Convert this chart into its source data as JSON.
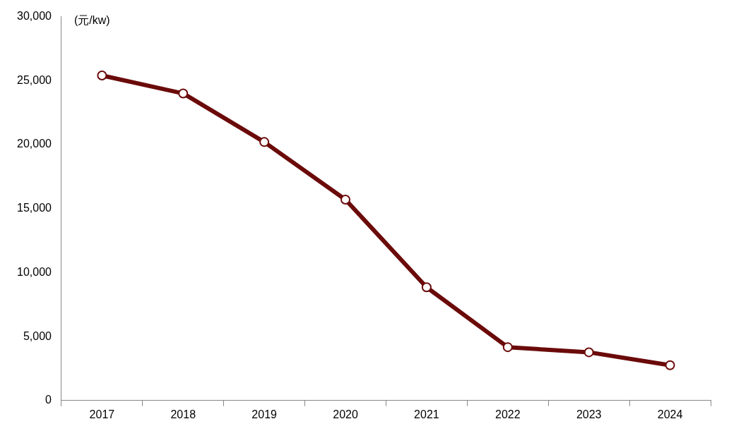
{
  "chart_data": {
    "type": "line",
    "ylabel": "(元/kw)",
    "categories": [
      "2017",
      "2018",
      "2019",
      "2020",
      "2021",
      "2022",
      "2023",
      "2024"
    ],
    "series": [
      {
        "color": "#6b0a0a",
        "values": [
          25400,
          24000,
          20200,
          15700,
          8850,
          4170,
          3770,
          2760
        ]
      }
    ],
    "ylim": [
      0,
      30000
    ],
    "yticks": [
      {
        "value": 0,
        "label": "0"
      },
      {
        "value": 5000,
        "label": "5,000"
      },
      {
        "value": 10000,
        "label": "10,000"
      },
      {
        "value": 15000,
        "label": "15,000"
      },
      {
        "value": 20000,
        "label": "20,000"
      },
      {
        "value": 25000,
        "label": "25,000"
      },
      {
        "value": 30000,
        "label": "30,000"
      }
    ],
    "grid": false,
    "legend": false,
    "marker": "circle",
    "line_style": "solid"
  }
}
